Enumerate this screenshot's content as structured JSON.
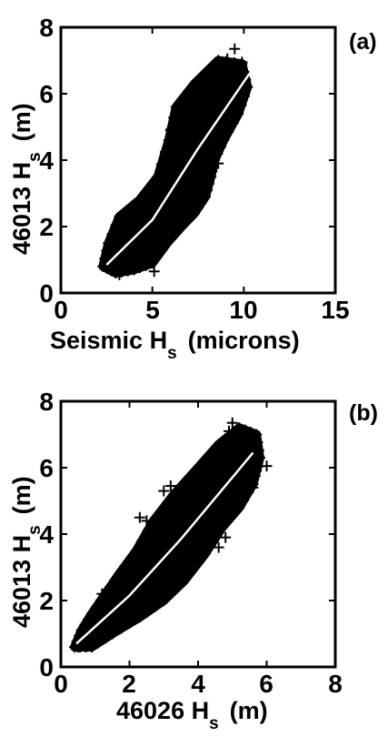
{
  "chart_data": [
    {
      "panel_label": "(a)",
      "type": "scatter",
      "xlabel": "Seismic H",
      "xlabel_sub": "s",
      "xlabel_unit": "(microns)",
      "ylabel": "46013 H",
      "ylabel_sub": "s",
      "ylabel_unit": "(m)",
      "xlim": [
        0,
        15
      ],
      "ylim": [
        0,
        8
      ],
      "xticks": [
        "0",
        "5",
        "10",
        "15"
      ],
      "yticks": [
        "0",
        "2",
        "4",
        "6",
        "8"
      ],
      "marker": "+",
      "point_color": "#000000",
      "fit_color": "#ffffff",
      "fit_line": [
        [
          2.5,
          0.85
        ],
        [
          5.0,
          2.2
        ],
        [
          7.5,
          4.35
        ],
        [
          10.3,
          6.6
        ]
      ],
      "cloud_outline": [
        [
          2.3,
          0.8
        ],
        [
          2.6,
          1.5
        ],
        [
          3.2,
          2.3
        ],
        [
          4.3,
          2.8
        ],
        [
          5.3,
          3.5
        ],
        [
          5.9,
          4.6
        ],
        [
          6.3,
          5.6
        ],
        [
          7.3,
          6.3
        ],
        [
          8.6,
          7.0
        ],
        [
          9.9,
          6.9
        ],
        [
          10.2,
          6.2
        ],
        [
          9.7,
          5.4
        ],
        [
          8.9,
          4.6
        ],
        [
          8.4,
          4.0
        ],
        [
          8.2,
          3.5
        ],
        [
          7.9,
          2.9
        ],
        [
          7.3,
          2.4
        ],
        [
          6.6,
          2.0
        ],
        [
          5.8,
          1.5
        ],
        [
          5.0,
          0.9
        ],
        [
          4.0,
          0.7
        ],
        [
          3.0,
          0.6
        ]
      ],
      "outliers": [
        [
          9.5,
          7.35
        ],
        [
          9.1,
          7.05
        ],
        [
          9.9,
          6.95
        ],
        [
          8.8,
          6.9
        ],
        [
          9.8,
          6.7
        ],
        [
          9.6,
          6.1
        ],
        [
          9.3,
          5.5
        ],
        [
          9.0,
          5.2
        ],
        [
          8.7,
          4.6
        ],
        [
          8.5,
          4.3
        ],
        [
          8.3,
          4.0
        ],
        [
          8.0,
          3.5
        ],
        [
          8.6,
          3.9
        ],
        [
          5.6,
          2.6
        ],
        [
          4.3,
          2.75
        ],
        [
          3.9,
          2.6
        ],
        [
          6.7,
          2.8
        ],
        [
          6.9,
          2.5
        ],
        [
          7.2,
          2.7
        ],
        [
          7.6,
          3.2
        ],
        [
          3.2,
          0.55
        ],
        [
          5.1,
          0.65
        ],
        [
          2.9,
          1.6
        ],
        [
          6.0,
          4.9
        ],
        [
          9.1,
          4.9
        ],
        [
          8.9,
          5.9
        ]
      ]
    },
    {
      "panel_label": "(b)",
      "type": "scatter",
      "xlabel": "46026 H",
      "xlabel_sub": "s",
      "xlabel_unit": "(m)",
      "ylabel": "46013 H",
      "ylabel_sub": "s",
      "ylabel_unit": "(m)",
      "xlim": [
        0,
        8
      ],
      "ylim": [
        0,
        8
      ],
      "xticks": [
        "0",
        "2",
        "4",
        "6",
        "8"
      ],
      "yticks": [
        "0",
        "2",
        "4",
        "6",
        "8"
      ],
      "marker": "+",
      "point_color": "#000000",
      "fit_color": "#ffffff",
      "fit_line": [
        [
          0.45,
          0.7
        ],
        [
          2.0,
          2.15
        ],
        [
          3.5,
          3.85
        ],
        [
          5.6,
          6.45
        ]
      ],
      "cloud_outline": [
        [
          0.4,
          0.6
        ],
        [
          0.6,
          1.1
        ],
        [
          0.9,
          1.6
        ],
        [
          1.3,
          2.2
        ],
        [
          1.7,
          2.8
        ],
        [
          2.2,
          3.5
        ],
        [
          2.7,
          4.4
        ],
        [
          3.3,
          5.2
        ],
        [
          4.0,
          6.0
        ],
        [
          4.6,
          6.7
        ],
        [
          5.2,
          7.2
        ],
        [
          5.7,
          7.0
        ],
        [
          5.8,
          6.3
        ],
        [
          5.6,
          5.5
        ],
        [
          5.2,
          4.8
        ],
        [
          4.7,
          4.2
        ],
        [
          4.2,
          3.4
        ],
        [
          3.6,
          2.6
        ],
        [
          3.0,
          2.0
        ],
        [
          2.3,
          1.5
        ],
        [
          1.5,
          1.0
        ],
        [
          0.9,
          0.6
        ]
      ],
      "outliers": [
        [
          5.0,
          7.35
        ],
        [
          4.9,
          7.1
        ],
        [
          4.6,
          6.7
        ],
        [
          5.5,
          6.5
        ],
        [
          6.0,
          6.05
        ],
        [
          5.7,
          5.9
        ],
        [
          3.2,
          5.45
        ],
        [
          3.0,
          5.3
        ],
        [
          4.2,
          5.5
        ],
        [
          2.3,
          4.5
        ],
        [
          2.5,
          4.4
        ],
        [
          4.3,
          6.0
        ],
        [
          5.3,
          5.2
        ],
        [
          4.8,
          3.9
        ],
        [
          4.6,
          3.6
        ],
        [
          4.4,
          4.6
        ],
        [
          1.0,
          1.7
        ],
        [
          1.2,
          2.2
        ],
        [
          2.9,
          2.1
        ],
        [
          3.4,
          2.7
        ],
        [
          0.5,
          0.6
        ],
        [
          5.6,
          5.4
        ]
      ]
    }
  ]
}
